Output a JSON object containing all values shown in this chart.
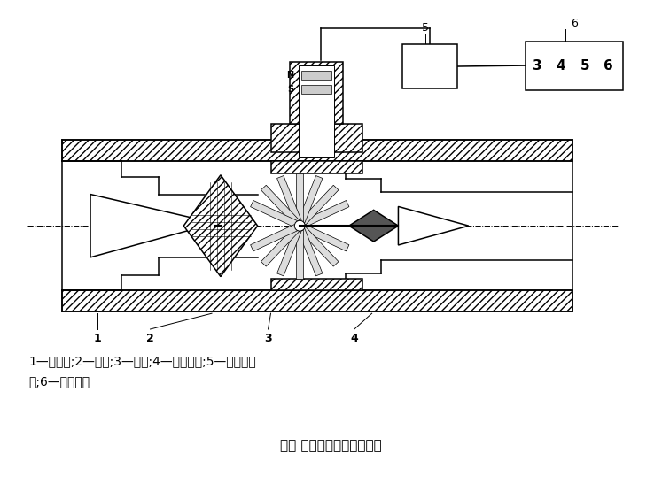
{
  "title": "图一 涡轮流量计结构示意图",
  "caption_line1": "1—整流器;2—轴承;3—转子;4—仪表管段;5—前置放大",
  "caption_line2": "器;6—显示装置",
  "bg_color": "#ffffff",
  "label_1": "1",
  "label_2": "2",
  "label_3": "3",
  "label_4": "4",
  "label_5": "5",
  "label_6": "6",
  "label_N": "N",
  "label_S": "S",
  "digits": [
    "3",
    "4",
    "5",
    "6"
  ]
}
